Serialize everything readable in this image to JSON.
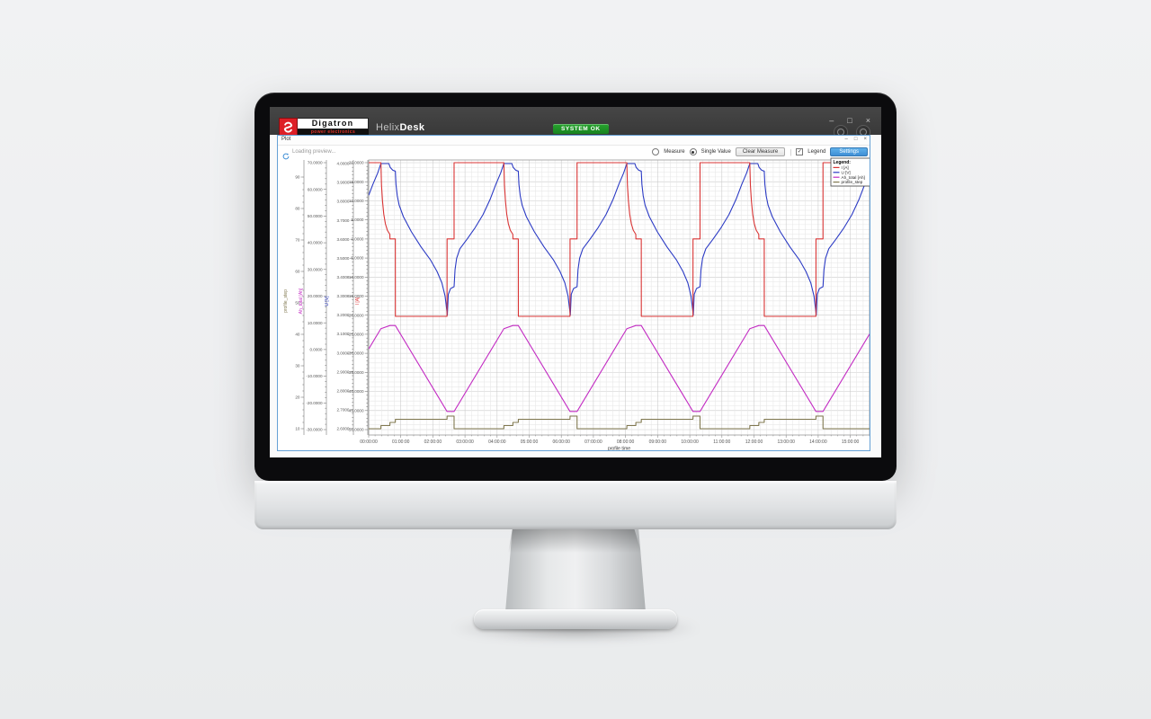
{
  "titlebar": {
    "brand_name": "Digatron",
    "brand_sub": "power electronics",
    "app_name_1": "Helix",
    "app_name_2": "Desk",
    "status_badge": "SYSTEM OK",
    "controls": {
      "minimize": "–",
      "maximize": "□",
      "close": "×"
    }
  },
  "plot_window": {
    "title": "Plot",
    "loading_text": "Loading preview...",
    "controls": {
      "minimize": "–",
      "restore": "□",
      "close": "×"
    }
  },
  "toolbar": {
    "measure_label": "Measure",
    "single_value_label": "Single Value",
    "clear_measure_label": "Clear Measure",
    "separator": "|",
    "legend_label": "Legend",
    "settings_label": "Settings",
    "measure_selected": false,
    "single_value_selected": true,
    "legend_checked": true,
    "accent_color": "#3f8fd6"
  },
  "chart_data": {
    "type": "line",
    "xlabel": "profile time",
    "x_domain_hours": [
      0,
      15.6
    ],
    "x_tick_labels": [
      "00:00:00",
      "01:00:00",
      "02:00:00",
      "03:00:00",
      "04:00:00",
      "05:00:00",
      "06:00:00",
      "07:00:00",
      "08:00:00",
      "09:00:00",
      "10:00:00",
      "11:00:00",
      "12:00:00",
      "13:00:00",
      "14:00:00",
      "15:00:00"
    ],
    "x_minor_step_hours": 0.2,
    "grid": true,
    "legend": {
      "title": "Legend:",
      "position": "top-right",
      "entries": [
        {
          "label": "I [A]",
          "color": "#d93434"
        },
        {
          "label": "U [V]",
          "color": "#2b3ac4"
        },
        {
          "label": "Ah_total [Ah]",
          "color": "#c32cc3"
        },
        {
          "label": "profile_step",
          "color": "#80784f"
        }
      ]
    },
    "y_axes": [
      {
        "id": "profile_step",
        "label": "profile_step",
        "color": "#80784f",
        "max": 90,
        "min": 10,
        "tick_step": 10,
        "decimals": 0
      },
      {
        "id": "Ah_total",
        "label": "Ah_total [Ah]",
        "color": "#c32cc3",
        "max": 70,
        "min": -30,
        "tick_step": 10,
        "decimals": 4
      },
      {
        "id": "U",
        "label": "U [V]",
        "color": "#2b3ac4",
        "max": 4.0,
        "min": 2.6,
        "tick_step": 0.1,
        "decimals": 4
      },
      {
        "id": "I",
        "label": "I [A]",
        "color": "#d93434",
        "max": 20,
        "min": -50,
        "tick_step": 5,
        "decimals": 4
      }
    ],
    "cycles": {
      "period_hours": 3.83,
      "start_times_hours": [
        -1.17,
        2.66,
        6.49,
        10.32,
        14.15
      ],
      "phases": [
        {
          "name": "cc_charge",
          "duration_hours": 1.55,
          "current_a": 20
        },
        {
          "name": "cv_charge",
          "duration_hours": 0.28,
          "voltage_v": 4.0
        },
        {
          "name": "rest",
          "duration_hours": 0.17,
          "current_a": 0
        },
        {
          "name": "discharge",
          "duration_hours": 1.61,
          "current_a": -20.3
        },
        {
          "name": "rest",
          "duration_hours": 0.22,
          "current_a": 0
        }
      ]
    },
    "series": [
      {
        "name": "I [A]",
        "axis": "I",
        "color": "#d93434",
        "cycle_points_t_v": [
          [
            0,
            20
          ],
          [
            1.55,
            20
          ],
          [
            1.57,
            14
          ],
          [
            1.6,
            10
          ],
          [
            1.64,
            6.5
          ],
          [
            1.69,
            4
          ],
          [
            1.75,
            2.3
          ],
          [
            1.83,
            1.2
          ],
          [
            1.832,
            0
          ],
          [
            2,
            0
          ],
          [
            2.002,
            -20.3
          ],
          [
            3.61,
            -20.3
          ],
          [
            3.612,
            0
          ],
          [
            3.83,
            0
          ]
        ]
      },
      {
        "name": "U [V]",
        "axis": "U",
        "color": "#2b3ac4",
        "cycle_points_t_v": [
          [
            0,
            3.35
          ],
          [
            0.03,
            3.44
          ],
          [
            0.08,
            3.5
          ],
          [
            0.18,
            3.55
          ],
          [
            0.4,
            3.6
          ],
          [
            0.65,
            3.66
          ],
          [
            0.9,
            3.73
          ],
          [
            1.12,
            3.81
          ],
          [
            1.3,
            3.89
          ],
          [
            1.45,
            3.95
          ],
          [
            1.55,
            4.0
          ],
          [
            1.8,
            4.0
          ],
          [
            1.84,
            3.98
          ],
          [
            1.92,
            3.965
          ],
          [
            2,
            3.96
          ],
          [
            2.02,
            3.89
          ],
          [
            2.06,
            3.83
          ],
          [
            2.12,
            3.78
          ],
          [
            2.25,
            3.72
          ],
          [
            2.5,
            3.64
          ],
          [
            2.8,
            3.56
          ],
          [
            3.1,
            3.49
          ],
          [
            3.3,
            3.43
          ],
          [
            3.45,
            3.37
          ],
          [
            3.55,
            3.3
          ],
          [
            3.6,
            3.23
          ],
          [
            3.62,
            3.2
          ],
          [
            3.65,
            3.31
          ],
          [
            3.72,
            3.34
          ],
          [
            3.83,
            3.35
          ]
        ]
      },
      {
        "name": "Ah_total [Ah]",
        "axis": "Ah_total",
        "color": "#c32cc3",
        "cycle_points_t_v": [
          [
            0,
            -23.2
          ],
          [
            1.55,
            7.8
          ],
          [
            1.83,
            9
          ],
          [
            2,
            9
          ],
          [
            3.61,
            -23.2
          ],
          [
            3.83,
            -23.2
          ]
        ]
      },
      {
        "name": "profile_step",
        "axis": "profile_step",
        "color": "#80784f",
        "cycle_points_t_v": [
          [
            0,
            10
          ],
          [
            1.55,
            10
          ],
          [
            1.552,
            11
          ],
          [
            1.83,
            11
          ],
          [
            1.832,
            12
          ],
          [
            2,
            12
          ],
          [
            2.002,
            13
          ],
          [
            3.61,
            13
          ],
          [
            3.612,
            14
          ],
          [
            3.83,
            14
          ]
        ]
      }
    ]
  }
}
